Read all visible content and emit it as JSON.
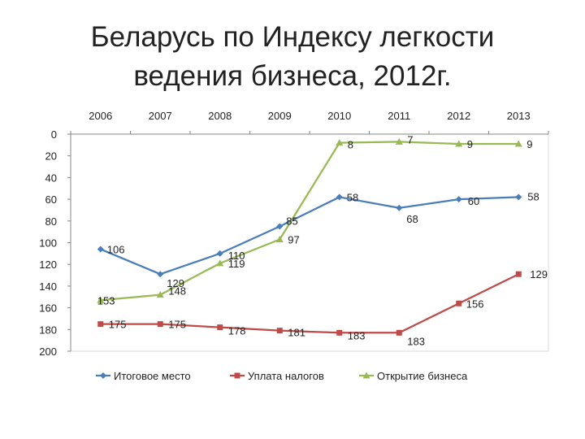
{
  "slide": {
    "title_line1": "Беларусь по Индексу легкости",
    "title_line2": "ведения бизнеса, 2012г."
  },
  "chart_data": {
    "type": "line",
    "categories": [
      "2006",
      "2007",
      "2008",
      "2009",
      "2010",
      "2011",
      "2012",
      "2013"
    ],
    "x_axis_position": "top",
    "y_reversed": true,
    "ylim": [
      0,
      200
    ],
    "yticks": [
      0,
      20,
      40,
      60,
      80,
      100,
      120,
      140,
      160,
      180,
      200
    ],
    "grid": false,
    "legend_position": "bottom",
    "series": [
      {
        "name": "Итоговое место",
        "color": "#4a7ebb",
        "marker": "diamond",
        "values": [
          106,
          129,
          110,
          85,
          58,
          68,
          60,
          58
        ],
        "labels": [
          "106",
          "129",
          "110",
          "85",
          "58",
          "68",
          "60",
          "58"
        ]
      },
      {
        "name": "Уплата налогов",
        "color": "#be4b48",
        "marker": "square",
        "values": [
          175,
          175,
          178,
          181,
          183,
          183,
          156,
          129
        ],
        "labels": [
          "175",
          "175",
          "178",
          "181",
          "183",
          "183",
          "156",
          "129"
        ]
      },
      {
        "name": "Открытие бизнеса",
        "color": "#98b954",
        "marker": "triangle",
        "values": [
          153,
          148,
          119,
          97,
          8,
          7,
          9,
          9
        ],
        "labels": [
          "153",
          "148",
          "119",
          "97",
          "8",
          "7",
          "9",
          "9"
        ]
      }
    ]
  }
}
